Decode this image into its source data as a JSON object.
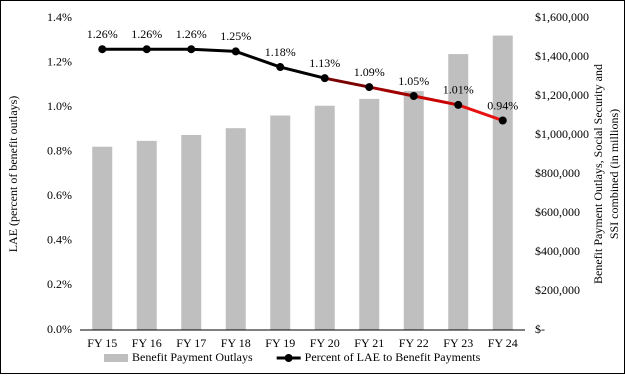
{
  "chart_data": {
    "type": "bar_line",
    "categories": [
      "FY 15",
      "FY 16",
      "FY 17",
      "FY 18",
      "FY 19",
      "FY 20",
      "FY 21",
      "FY 22",
      "FY 23",
      "FY 24"
    ],
    "ylabel": "LAE (percent of benefit outlays)",
    "y2label": [
      "Benefit Payment Outlays, Social Security and",
      "SSI combined (in millions)"
    ],
    "ylim": [
      0,
      1.4
    ],
    "yticks": [
      {
        "value": 0,
        "label": "0.0%"
      },
      {
        "value": 0.2,
        "label": "0.2%"
      },
      {
        "value": 0.4,
        "label": "0.4%"
      },
      {
        "value": 0.6,
        "label": "0.6%"
      },
      {
        "value": 0.8,
        "label": "0.8%"
      },
      {
        "value": 1.0,
        "label": "1.0%"
      },
      {
        "value": 1.2,
        "label": "1.2%"
      },
      {
        "value": 1.4,
        "label": "1.4%"
      }
    ],
    "y2lim": [
      0,
      1600000
    ],
    "y2ticks": [
      {
        "value": 0,
        "label": "$-"
      },
      {
        "value": 200000,
        "label": "$200,000"
      },
      {
        "value": 400000,
        "label": "$400,000"
      },
      {
        "value": 600000,
        "label": "$600,000"
      },
      {
        "value": 800000,
        "label": "$800,000"
      },
      {
        "value": 1000000,
        "label": "$1,000,000"
      },
      {
        "value": 1200000,
        "label": "$1,200,000"
      },
      {
        "value": 1400000,
        "label": "$1,400,000"
      },
      {
        "value": 1600000,
        "label": "$1,600,000"
      }
    ],
    "series": [
      {
        "name": "Benefit Payment Outlays",
        "type": "bar",
        "axis": "y2",
        "color": "#bfbfbf",
        "values": [
          940000,
          970000,
          1000000,
          1035000,
          1100000,
          1150000,
          1185000,
          1225000,
          1415000,
          1510000
        ]
      },
      {
        "name": "Percent of LAE to Benefit Payments",
        "type": "line",
        "axis": "y",
        "color": "#000000",
        "segment_colors": [
          "#000000",
          "#000000",
          "#000000",
          "#000000",
          "#000000",
          "#7a0000",
          "#a00000",
          "#c80000",
          "#e81010"
        ],
        "values": [
          1.26,
          1.26,
          1.26,
          1.25,
          1.18,
          1.13,
          1.09,
          1.05,
          1.01,
          0.94
        ],
        "value_labels": [
          "1.26%",
          "1.26%",
          "1.26%",
          "1.25%",
          "1.18%",
          "1.13%",
          "1.09%",
          "1.05%",
          "1.01%",
          "0.94%"
        ]
      }
    ]
  }
}
